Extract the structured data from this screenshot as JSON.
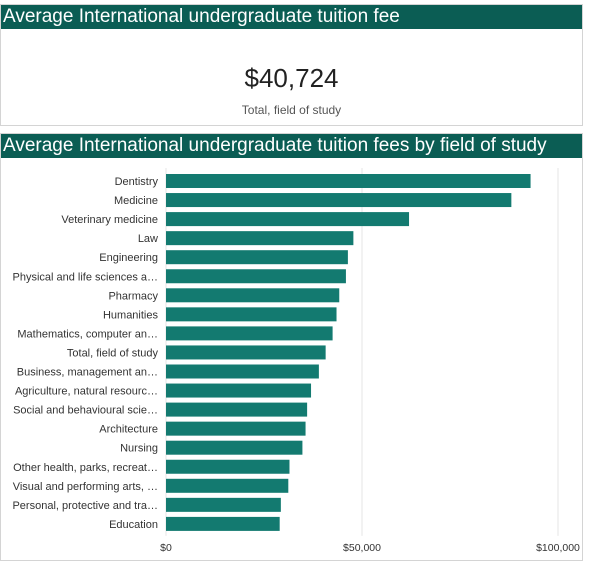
{
  "kpi": {
    "title": "Average International undergraduate tuition fee",
    "value": "$40,724",
    "label": "Total, field of study"
  },
  "chart_panel": {
    "title": "Average International undergraduate tuition fees by field of study"
  },
  "colors": {
    "header": "#0b5d54",
    "bar": "#137a70",
    "grid": "#e6e6e6"
  },
  "chart_data": {
    "type": "bar",
    "orientation": "horizontal",
    "title": "Average International undergraduate tuition fees by field of study",
    "categories": [
      "Dentistry",
      "Medicine",
      "Veterinary medicine",
      "Law",
      "Engineering",
      "Physical and life sciences a…",
      "Pharmacy",
      "Humanities",
      "Mathematics, computer an…",
      "Total, field of study",
      "Business, management an…",
      "Agriculture, natural resourc…",
      "Social and behavioural scie…",
      "Architecture",
      "Nursing",
      "Other health, parks, recreat…",
      "Visual and performing arts, …",
      "Personal, protective and tra…",
      "Education"
    ],
    "values": [
      93000,
      88100,
      62000,
      47800,
      46400,
      45900,
      44200,
      43500,
      42500,
      40724,
      39000,
      37000,
      36000,
      35600,
      34800,
      31500,
      31200,
      29300,
      29000
    ],
    "xlim": [
      0,
      100000
    ],
    "xticks": [
      "$0",
      "$50,000",
      "$100,000"
    ],
    "xtick_values": [
      0,
      50000,
      100000
    ],
    "grid": true
  }
}
